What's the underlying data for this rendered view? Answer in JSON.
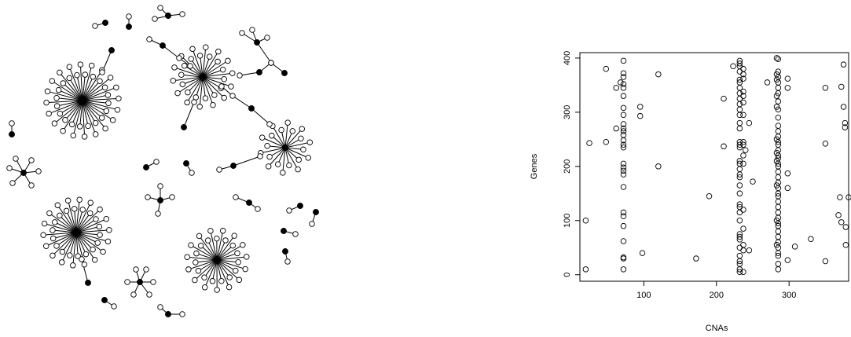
{
  "chart_data": {
    "type": "scatter",
    "x_label": "CNAs",
    "y_label": "Genes",
    "xlim": [
      12,
      382
    ],
    "ylim": [
      -12,
      410
    ],
    "xticks": [
      100,
      200,
      300
    ],
    "yticks": [
      0,
      100,
      200,
      300,
      400
    ],
    "color": "#000000",
    "x": [
      20,
      20,
      25,
      48,
      48,
      62,
      62,
      68,
      95,
      95,
      98,
      120,
      120,
      172,
      190,
      210,
      210,
      223,
      240,
      245,
      250,
      245,
      270,
      298,
      298,
      298,
      298,
      298,
      308,
      330,
      350,
      350,
      350,
      368,
      370,
      372,
      372,
      375,
      375,
      377,
      377,
      378,
      378,
      382,
      72,
      72,
      72,
      72,
      72,
      72,
      72,
      72,
      72,
      72,
      72,
      72,
      72,
      72,
      72,
      72,
      72,
      72,
      72,
      72,
      72,
      72,
      72,
      72,
      72,
      72,
      72,
      232,
      232,
      232,
      232,
      232,
      232,
      232,
      232,
      232,
      232,
      232,
      232,
      232,
      232,
      232,
      232,
      232,
      232,
      232,
      232,
      232,
      232,
      232,
      232,
      232,
      232,
      232,
      232,
      232,
      232,
      232,
      232,
      232,
      232,
      232,
      232,
      232,
      237,
      237,
      237,
      237,
      237,
      237,
      237,
      237,
      237,
      237,
      237,
      237,
      237,
      237,
      237,
      237,
      285,
      285,
      285,
      285,
      285,
      285,
      285,
      285,
      285,
      285,
      285,
      285,
      285,
      285,
      285,
      285,
      285,
      285,
      285,
      285,
      285,
      285,
      285,
      285,
      285,
      285,
      285,
      285,
      285,
      285,
      285,
      285,
      285,
      285,
      285,
      285,
      285,
      285,
      285,
      283,
      283,
      283,
      283,
      283,
      283,
      283,
      283,
      283,
      283,
      283
    ],
    "y": [
      100,
      10,
      243,
      380,
      245,
      270,
      345,
      355,
      310,
      293,
      40,
      370,
      200,
      30,
      145,
      325,
      237,
      385,
      230,
      280,
      172,
      45,
      355,
      362,
      345,
      187,
      160,
      27,
      52,
      66,
      242,
      345,
      25,
      110,
      143,
      347,
      97,
      388,
      310,
      280,
      272,
      88,
      55,
      143,
      395,
      372,
      365,
      352,
      345,
      330,
      308,
      295,
      278,
      270,
      265,
      258,
      248,
      240,
      235,
      205,
      198,
      192,
      185,
      162,
      115,
      108,
      90,
      62,
      32,
      30,
      10,
      395,
      390,
      385,
      375,
      360,
      355,
      345,
      335,
      325,
      315,
      305,
      295,
      280,
      270,
      245,
      240,
      235,
      210,
      205,
      195,
      185,
      180,
      165,
      150,
      130,
      125,
      115,
      100,
      75,
      70,
      65,
      50,
      35,
      25,
      20,
      10,
      5,
      380,
      370,
      362,
      338,
      330,
      318,
      295,
      245,
      240,
      220,
      205,
      120,
      85,
      55,
      45,
      5,
      398,
      375,
      365,
      355,
      345,
      335,
      320,
      305,
      290,
      275,
      265,
      255,
      245,
      240,
      230,
      220,
      215,
      205,
      200,
      190,
      180,
      170,
      160,
      150,
      145,
      135,
      125,
      115,
      105,
      95,
      90,
      80,
      70,
      60,
      50,
      40,
      35,
      20,
      10,
      400,
      370,
      360,
      330,
      310,
      250,
      225,
      210,
      165,
      100,
      55
    ]
  }
}
